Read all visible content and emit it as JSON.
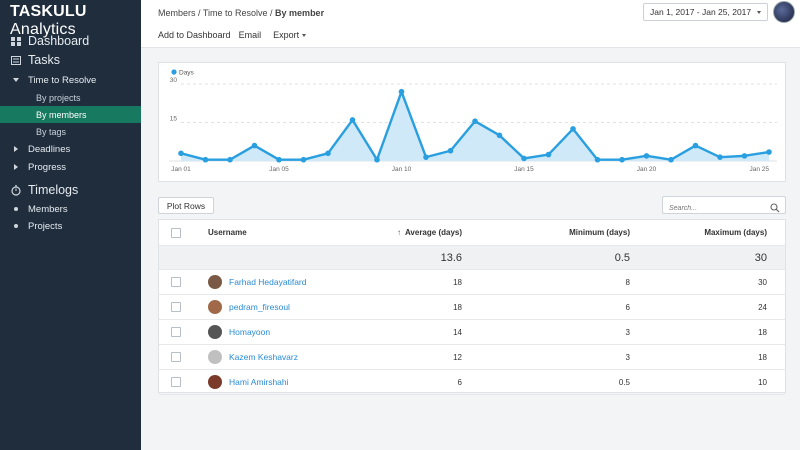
{
  "brand": {
    "part1": "TASKULU",
    "part2": " Analytics"
  },
  "sidebar": {
    "dashboard": "Dashboard",
    "tasks": "Tasks",
    "time_to_resolve": "Time to Resolve",
    "by_projects": "By projects",
    "by_members": "By members",
    "by_tags": "By tags",
    "deadlines": "Deadlines",
    "progress": "Progress",
    "timelogs": "Timelogs",
    "members": "Members",
    "projects": "Projects"
  },
  "breadcrumb": {
    "path": "Members / Time to Resolve / ",
    "current": "By member"
  },
  "actions": {
    "add_to_dashboard": "Add to Dashboard",
    "email": "Email",
    "export": "Export"
  },
  "date_range": "Jan 1, 2017 - Jan 25, 2017",
  "colors": {
    "accent": "#2a9fe0",
    "area": "#cfe9f8",
    "sidebar": "#1f2d3d",
    "active": "#17795f",
    "link": "#2a8bd4"
  },
  "chart_data": {
    "type": "area",
    "legend": "Days",
    "x": [
      "Jan 01",
      "Jan 02",
      "Jan 03",
      "Jan 04",
      "Jan 05",
      "Jan 06",
      "Jan 07",
      "Jan 08",
      "Jan 09",
      "Jan 10",
      "Jan 11",
      "Jan 12",
      "Jan 13",
      "Jan 14",
      "Jan 15",
      "Jan 16",
      "Jan 17",
      "Jan 18",
      "Jan 19",
      "Jan 20",
      "Jan 21",
      "Jan 22",
      "Jan 23",
      "Jan 24",
      "Jan 25"
    ],
    "x_tick_labels": [
      "Jan 01",
      "Jan 05",
      "Jan 10",
      "Jan 15",
      "Jan 20",
      "Jan 25"
    ],
    "y_ticks": [
      15,
      30
    ],
    "ylim": [
      0,
      30
    ],
    "values": [
      3,
      0.5,
      0.5,
      6,
      0.5,
      0.5,
      3,
      16,
      0.5,
      27,
      1.5,
      4,
      15.5,
      10,
      1,
      2.5,
      12.5,
      0.5,
      0.5,
      2,
      0.5,
      6,
      1.5,
      2,
      3.5
    ],
    "grid": "horizontal dashed"
  },
  "toolbar": {
    "plot_rows": "Plot Rows",
    "search_placeholder": "Search..."
  },
  "table": {
    "headers": {
      "username": "Username",
      "average": "Average (days)",
      "minimum": "Minimum (days)",
      "maximum": "Maximum (days)"
    },
    "totals": {
      "average": "13.6",
      "minimum": "0.5",
      "maximum": "30"
    },
    "rows": [
      {
        "username": "Farhad Hedayatifard",
        "average": "18",
        "minimum": "8",
        "maximum": "30",
        "avatar_color": "#7a5a44"
      },
      {
        "username": "pedram_firesoul",
        "average": "18",
        "minimum": "6",
        "maximum": "24",
        "avatar_color": "#a06a4a"
      },
      {
        "username": "Homayoon",
        "average": "14",
        "minimum": "3",
        "maximum": "18",
        "avatar_color": "#555555"
      },
      {
        "username": "Kazem Keshavarz",
        "average": "12",
        "minimum": "3",
        "maximum": "18",
        "avatar_color": "#c0c0c0"
      },
      {
        "username": "Hami Amirshahi",
        "average": "6",
        "minimum": "0.5",
        "maximum": "10",
        "avatar_color": "#7b3a2a"
      }
    ]
  }
}
